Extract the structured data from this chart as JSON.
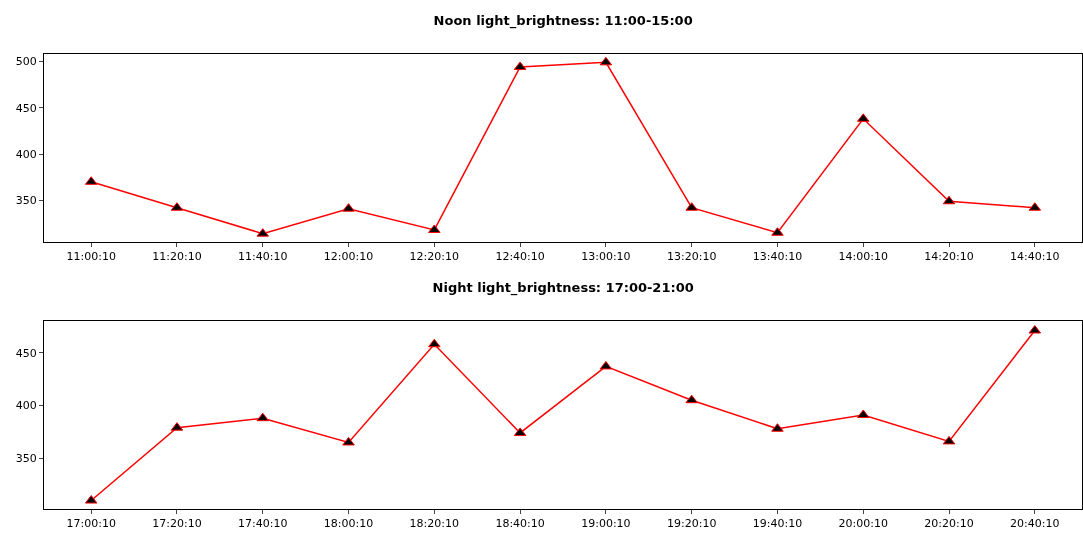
{
  "chart_data": [
    {
      "type": "line",
      "title": "Noon light_brightness: 11:00-15:00",
      "categories": [
        "11:00:10",
        "11:20:10",
        "11:40:10",
        "12:00:10",
        "12:20:10",
        "12:40:10",
        "13:00:10",
        "13:20:10",
        "13:40:10",
        "14:00:10",
        "14:20:10",
        "14:40:10"
      ],
      "series": [
        {
          "color": "#ff0000",
          "values": [
            370,
            342,
            314,
            341,
            318,
            494,
            499,
            342,
            315,
            438,
            349,
            342
          ]
        }
      ],
      "ylim": [
        305,
        508
      ],
      "yticks": [
        350,
        400,
        450,
        500
      ],
      "marker": "triangle",
      "line_style": "solid"
    },
    {
      "type": "line",
      "title": "Night light_brightness: 17:00-21:00",
      "categories": [
        "17:00:10",
        "17:20:10",
        "17:40:10",
        "18:00:10",
        "18:20:10",
        "18:40:10",
        "19:00:10",
        "19:20:10",
        "19:40:10",
        "20:00:10",
        "20:20:10",
        "20:40:10"
      ],
      "series": [
        {
          "color": "#ff0000",
          "values": [
            310,
            379,
            388,
            365,
            458,
            374,
            437,
            405,
            378,
            391,
            366,
            471
          ]
        }
      ],
      "ylim": [
        302,
        480
      ],
      "yticks": [
        350,
        400,
        450
      ],
      "marker": "triangle",
      "line_style": "solid"
    }
  ]
}
